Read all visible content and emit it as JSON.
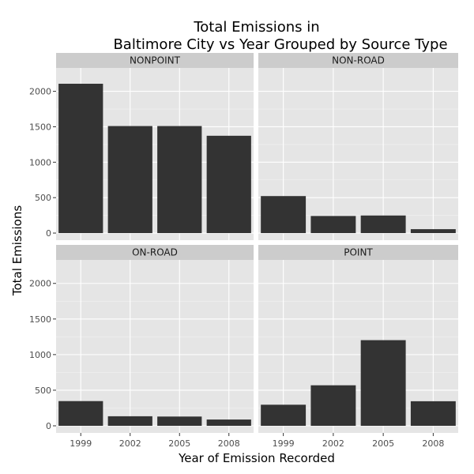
{
  "chart_data": {
    "type": "bar",
    "title_lines": [
      "Total Emissions in",
      "Baltimore City vs Year Grouped by Source Type"
    ],
    "xlabel": "Year of Emission Recorded",
    "ylabel": "Total Emissions",
    "categories": [
      "1999",
      "2002",
      "2005",
      "2008"
    ],
    "yticks": [
      0,
      500,
      1000,
      1500,
      2000
    ],
    "ylim": [
      -100,
      2330
    ],
    "grid": true,
    "colors": {
      "bar": "#333333",
      "panel_bg": "#e5e5e5",
      "strip_bg": "#cccccc",
      "grid_major": "#ffffff",
      "grid_minor": "#f2f2f2"
    },
    "facets": [
      {
        "name": "NONPOINT",
        "values": [
          2107,
          1510,
          1510,
          1373
        ]
      },
      {
        "name": "NON-ROAD",
        "values": [
          522,
          241,
          248,
          55
        ]
      },
      {
        "name": "ON-ROAD",
        "values": [
          347,
          134,
          130,
          88
        ]
      },
      {
        "name": "POINT",
        "values": [
          296,
          569,
          1203,
          345
        ]
      }
    ]
  }
}
